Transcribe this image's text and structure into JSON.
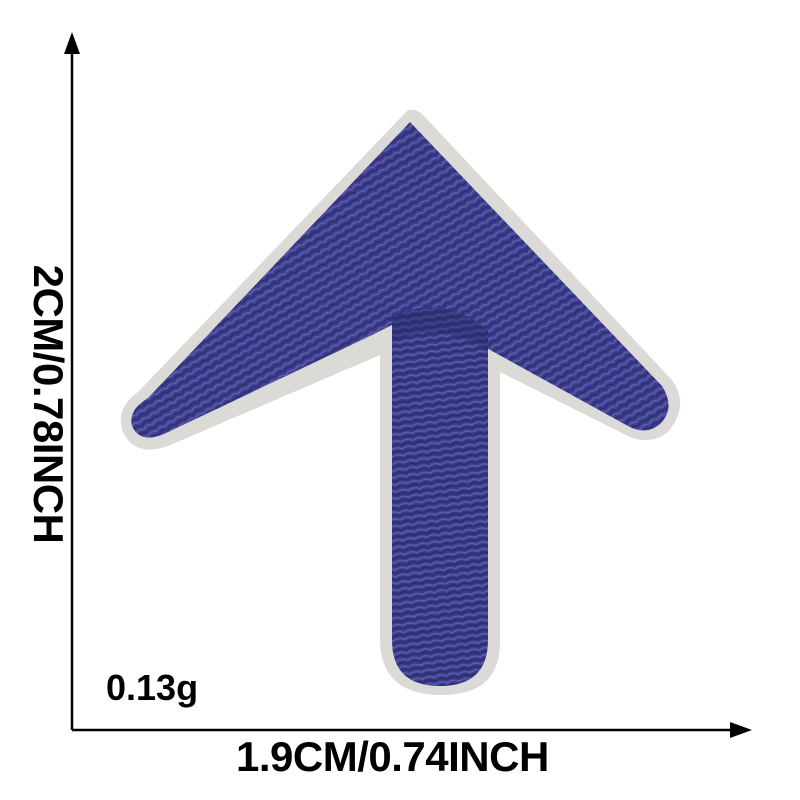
{
  "product": {
    "name": "arrow-patch",
    "thread_color": "#3c3d8c",
    "border_color": "#d9d8d6"
  },
  "dimensions": {
    "width_label": "1.9CM/0.74INCH",
    "height_label": "2CM/0.78INCH",
    "weight_label": "0.13g"
  }
}
